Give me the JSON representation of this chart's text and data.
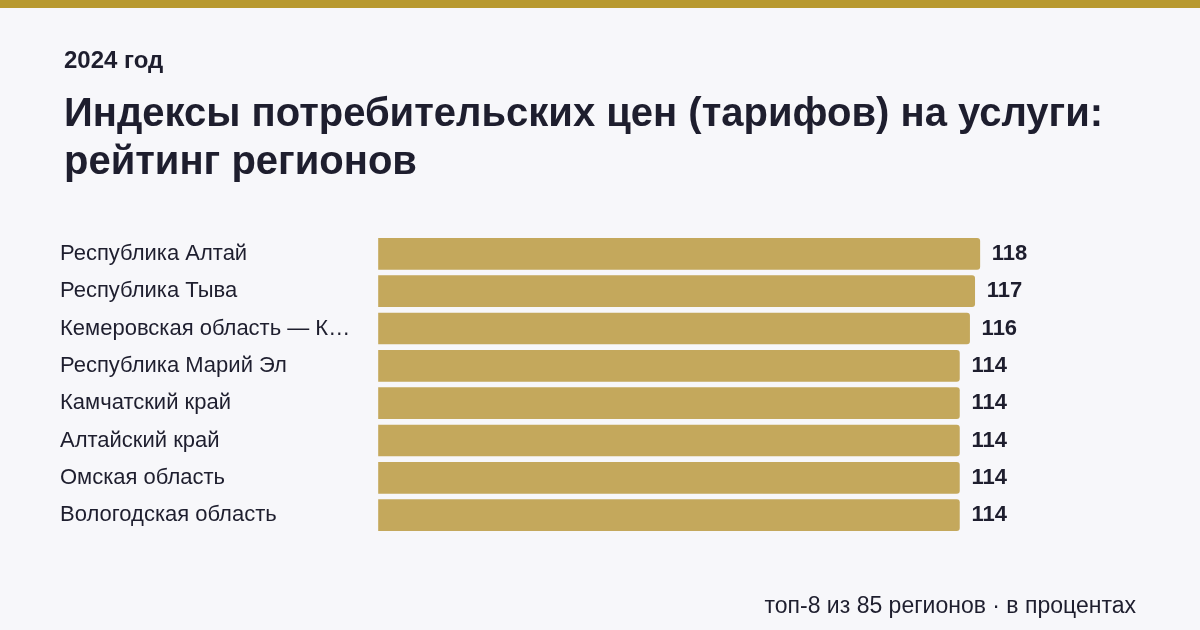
{
  "chart_data": {
    "type": "bar",
    "orientation": "horizontal",
    "title": "Индексы потребительских цен (тарифов) на услуги: рейтинг регионов",
    "subtitle": "2024 год",
    "categories": [
      "Республика Алтай",
      "Республика Тыва",
      "Кемеровская область — К…",
      "Республика Марий Эл",
      "Камчатский край",
      "Алтайский край",
      "Омская область",
      "Вологодская область"
    ],
    "values": [
      118,
      117,
      116,
      114,
      114,
      114,
      114,
      114
    ],
    "color": "#c4a85c",
    "data_labels": true,
    "grid": false,
    "legend": false,
    "annotations": [
      "топ-8 из 85 регионов · в процентах"
    ]
  }
}
